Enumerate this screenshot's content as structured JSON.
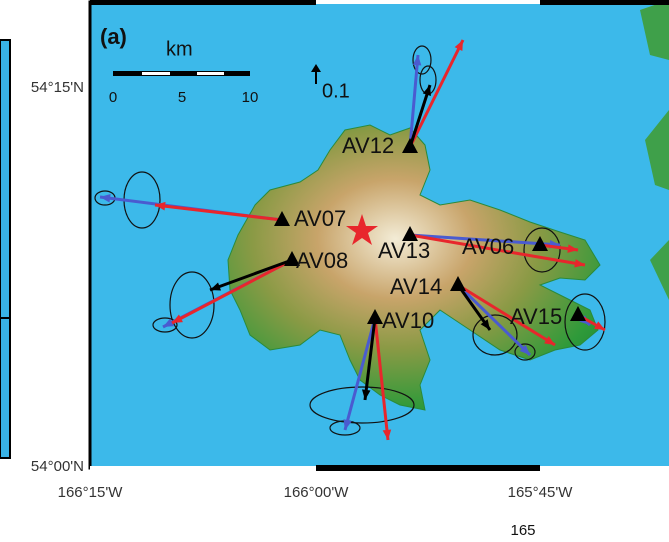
{
  "panel_label": "(a)",
  "scale_bar": {
    "unit": "km",
    "ticks": [
      "0",
      "5",
      "10"
    ]
  },
  "reference_vector": "0.1",
  "latitude_labels": [
    "54°15'N",
    "54°00'N"
  ],
  "longitude_labels": [
    "166°15'W",
    "166°00'W",
    "165°45'W"
  ],
  "stations": [
    "AV12",
    "AV07",
    "AV08",
    "AV13",
    "AV06",
    "AV14",
    "AV10",
    "AV15"
  ],
  "page_number": "165"
}
